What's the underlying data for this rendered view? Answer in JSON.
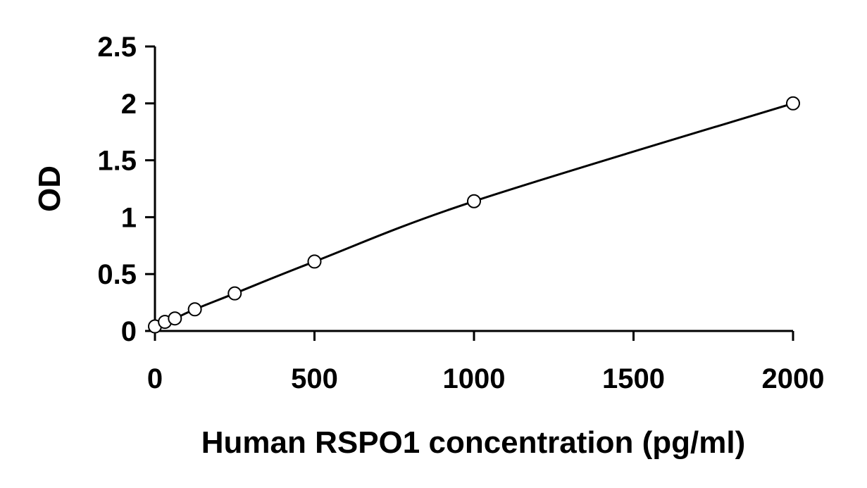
{
  "chart_data": {
    "type": "scatter",
    "title": "",
    "xlabel": "Human RSPO1 concentration (pg/ml)",
    "ylabel": "OD",
    "xlim": [
      0,
      2000
    ],
    "ylim": [
      0,
      2.5
    ],
    "xticks": [
      0,
      500,
      1000,
      1500,
      2000
    ],
    "yticks": [
      0,
      0.5,
      1,
      1.5,
      2,
      2.5
    ],
    "xtick_labels": [
      "0",
      "500",
      "1000",
      "1500",
      "2000"
    ],
    "ytick_labels": [
      "0",
      "0.5",
      "1",
      "1.5",
      "2",
      "2.5"
    ],
    "grid": false,
    "series": [
      {
        "marker": "open-circle",
        "trendline": "smooth",
        "x": [
          0,
          31.25,
          62.5,
          125,
          250,
          500,
          1000,
          2000
        ],
        "y": [
          0.04,
          0.08,
          0.11,
          0.19,
          0.33,
          0.61,
          1.14,
          2.0
        ]
      }
    ],
    "colors": {
      "line": "#000000",
      "marker_fill": "#ffffff",
      "axis": "#000000"
    }
  }
}
